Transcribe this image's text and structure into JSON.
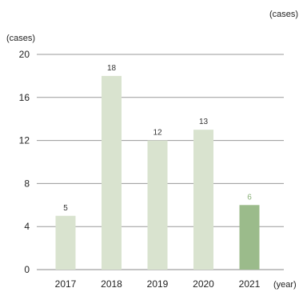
{
  "page": {
    "unit_top_right": "(cases)"
  },
  "chart_data": {
    "type": "bar",
    "categories": [
      "2017",
      "2018",
      "2019",
      "2020",
      "2021"
    ],
    "values": [
      5,
      18,
      12,
      13,
      6
    ],
    "data_labels": [
      "5",
      "18",
      "12",
      "13",
      "6"
    ],
    "ylabel": "(cases)",
    "xlabel": "(year)",
    "ylim": [
      0,
      20
    ],
    "yticks": [
      0,
      4,
      8,
      12,
      16,
      20
    ],
    "grid": true,
    "colors": {
      "bar_default": "#d9e3cf",
      "bar_highlight": "#9bbb8b",
      "label_default": "#333333",
      "label_highlight": "#8bb27a"
    },
    "highlight_category": "2021"
  }
}
